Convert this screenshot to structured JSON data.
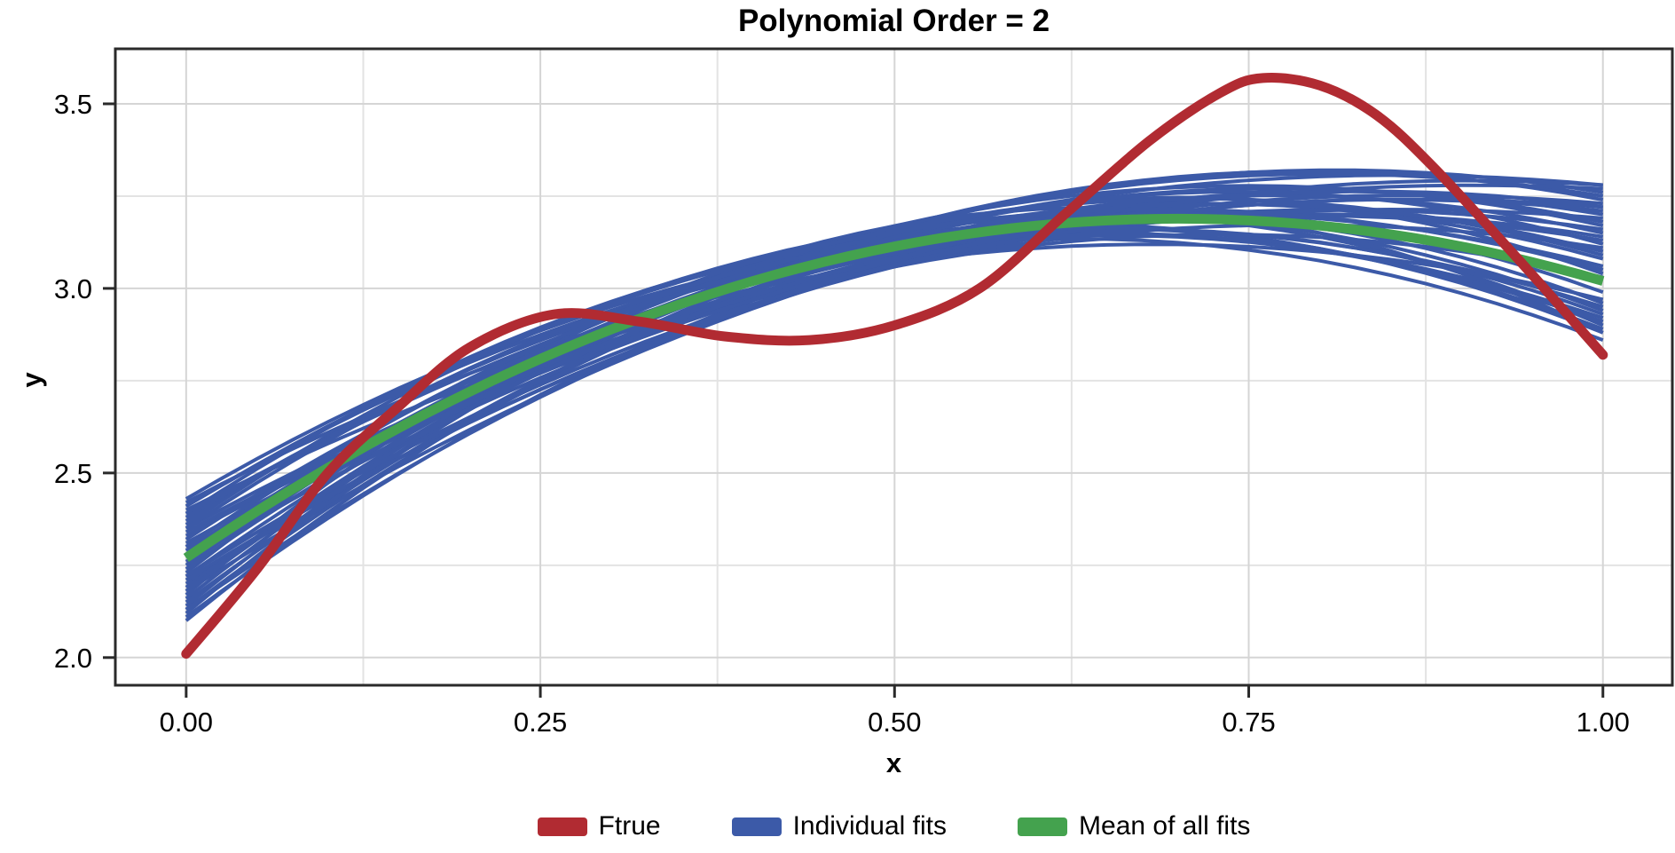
{
  "colors": {
    "red": "#B12B32",
    "blue": "#3C5AA8",
    "green": "#44A24E",
    "grid_major": "#D5D5D5",
    "grid_minor": "#E3E3E3",
    "axis": "#2A2A2A",
    "text": "#000000",
    "background": "#FFFFFF"
  },
  "chart_data": {
    "type": "line",
    "title": "Polynomial Order = 2",
    "xlabel": "x",
    "ylabel": "y",
    "x_range": [
      -0.05,
      1.049
    ],
    "y_range": [
      1.925,
      3.649
    ],
    "grid": "major+minor",
    "legend_position": "bottom",
    "x_major_ticks": [
      {
        "v": 0.0,
        "label": "0.00"
      },
      {
        "v": 0.25,
        "label": "0.25"
      },
      {
        "v": 0.5,
        "label": "0.50"
      },
      {
        "v": 0.75,
        "label": "0.75"
      },
      {
        "v": 1.0,
        "label": "1.00"
      }
    ],
    "x_minor_ticks": [
      0.125,
      0.375,
      0.625,
      0.875
    ],
    "y_major_ticks": [
      {
        "v": 2.0,
        "label": "2.0"
      },
      {
        "v": 2.5,
        "label": "2.5"
      },
      {
        "v": 3.0,
        "label": "3.0"
      },
      {
        "v": 3.5,
        "label": "3.5"
      }
    ],
    "y_minor_ticks": [
      2.25,
      2.75,
      3.25
    ],
    "legend": [
      {
        "label": "Ftrue",
        "color": "#B12B32"
      },
      {
        "label": "Individual fits",
        "color": "#3C5AA8"
      },
      {
        "label": "Mean of all fits",
        "color": "#44A24E"
      }
    ],
    "series": {
      "ftrue": {
        "name": "Ftrue",
        "color": "#B12B32",
        "stroke_width": 11,
        "points_x": [
          0.0,
          0.05,
          0.1,
          0.15,
          0.2,
          0.26,
          0.32,
          0.38,
          0.44,
          0.5,
          0.56,
          0.62,
          0.68,
          0.73,
          0.76,
          0.8,
          0.84,
          0.88,
          0.94,
          1.0
        ],
        "points_y": [
          2.01,
          2.24,
          2.5,
          2.68,
          2.84,
          2.93,
          2.91,
          2.87,
          2.86,
          2.9,
          3.0,
          3.2,
          3.4,
          3.53,
          3.57,
          3.55,
          3.47,
          3.33,
          3.08,
          2.82
        ]
      },
      "mean_fit": {
        "name": "Mean of all fits",
        "color": "#44A24E",
        "stroke_width": 11,
        "quadratic": {
          "a": 2.27,
          "b": 2.625,
          "c": -1.875
        },
        "endpoints": {
          "x0": 0.0,
          "y0": 2.27,
          "x1": 1.0,
          "y1": 3.02,
          "peak_x": 0.7,
          "peak_y": 3.19
        }
      },
      "individual_fits": {
        "name": "Individual fits",
        "color": "#3C5AA8",
        "stroke_width": 4,
        "count": 40,
        "anchor_x": [
          0.0,
          0.5,
          1.0
        ],
        "mean_anchor_y": [
          2.27,
          3.114,
          3.02
        ],
        "offsets": [
          [
            -0.16,
            -0.02,
            0.18
          ],
          [
            0.12,
            0.03,
            -0.14
          ],
          [
            -0.05,
            0.045,
            0.24
          ],
          [
            0.08,
            -0.05,
            0.09
          ],
          [
            -0.13,
            0.01,
            -0.06
          ],
          [
            0.03,
            0.055,
            0.15
          ],
          [
            -0.09,
            -0.045,
            0.26
          ],
          [
            0.14,
            0.0,
            -0.1
          ],
          [
            -0.02,
            0.025,
            0.06
          ],
          [
            0.06,
            -0.035,
            0.2
          ],
          [
            -0.15,
            0.04,
            0.02
          ],
          [
            0.1,
            -0.01,
            -0.16
          ],
          [
            -0.07,
            -0.055,
            0.12
          ],
          [
            0.02,
            0.05,
            0.23
          ],
          [
            -0.11,
            0.015,
            -0.03
          ],
          [
            0.13,
            -0.04,
            0.17
          ],
          [
            -0.04,
            0.035,
            -0.12
          ],
          [
            0.07,
            -0.025,
            0.25
          ],
          [
            -0.14,
            -0.005,
            0.08
          ],
          [
            0.09,
            0.045,
            -0.08
          ],
          [
            -0.06,
            -0.05,
            0.19
          ],
          [
            0.11,
            0.02,
            0.04
          ],
          [
            -0.1,
            0.055,
            -0.14
          ],
          [
            0.04,
            -0.03,
            0.21
          ],
          [
            -0.12,
            0.005,
            0.13
          ],
          [
            0.15,
            -0.045,
            -0.05
          ],
          [
            -0.03,
            0.03,
            0.16
          ],
          [
            0.05,
            -0.015,
            -0.11
          ],
          [
            -0.08,
            0.05,
            0.22
          ],
          [
            0.01,
            -0.055,
            0.01
          ],
          [
            -0.17,
            0.025,
            0.1
          ],
          [
            0.16,
            0.01,
            -0.07
          ],
          [
            -0.01,
            -0.04,
            0.14
          ],
          [
            0.12,
            0.035,
            0.26
          ],
          [
            -0.09,
            -0.02,
            -0.09
          ],
          [
            0.03,
            0.045,
            0.07
          ],
          [
            -0.14,
            -0.035,
            0.2
          ],
          [
            0.08,
            0.015,
            -0.13
          ],
          [
            -0.05,
            -0.05,
            0.11
          ],
          [
            0.14,
            0.04,
            0.03
          ]
        ]
      }
    }
  }
}
